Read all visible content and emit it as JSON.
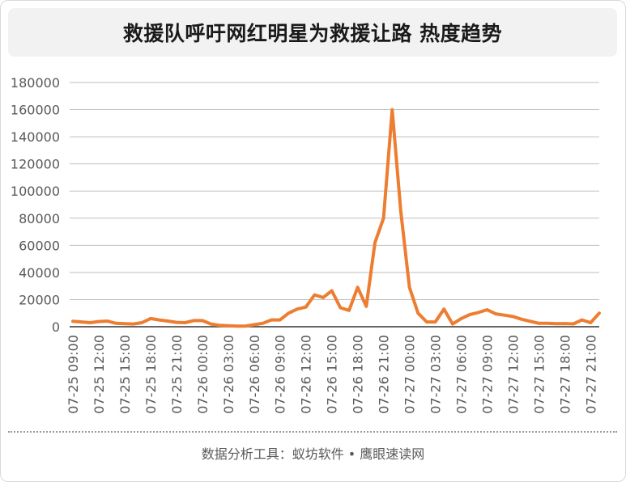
{
  "header": {
    "title": "救援队呼吁网红明星为救援让路 热度趋势"
  },
  "footer": {
    "text": "数据分析工具：蚁坊软件 • 鹰眼速读网"
  },
  "colors": {
    "line": "#ED7D31",
    "grid": "#bfbfbf",
    "axis": "#333333",
    "text": "#595959"
  },
  "chart_data": {
    "type": "line",
    "title": "救援队呼吁网红明星为救援让路 热度趋势",
    "xlabel": "",
    "ylabel": "",
    "ylim": [
      0,
      180000
    ],
    "yticks": [
      0,
      20000,
      40000,
      60000,
      80000,
      100000,
      120000,
      140000,
      160000,
      180000
    ],
    "grid": true,
    "legend": "none",
    "x_tick_labels": [
      "07-25 09:00",
      "07-25 12:00",
      "07-25 15:00",
      "07-25 18:00",
      "07-25 21:00",
      "07-26 00:00",
      "07-26 03:00",
      "07-26 06:00",
      "07-26 09:00",
      "07-26 12:00",
      "07-26 15:00",
      "07-26 18:00",
      "07-26 21:00",
      "07-27 00:00",
      "07-27 03:00",
      "07-27 06:00",
      "07-27 09:00",
      "07-27 12:00",
      "07-27 15:00",
      "07-27 18:00",
      "07-27 21:00"
    ],
    "tick_every": 3,
    "series": [
      {
        "name": "",
        "values": [
          4000,
          3500,
          3000,
          3800,
          4200,
          2500,
          2200,
          2000,
          3000,
          6000,
          5000,
          4200,
          3200,
          3000,
          4500,
          4500,
          2000,
          1000,
          800,
          500,
          500,
          1500,
          2500,
          5000,
          5000,
          10000,
          13000,
          14500,
          23500,
          21500,
          26500,
          14000,
          12000,
          29000,
          15000,
          62000,
          80000,
          160000,
          85000,
          29000,
          10000,
          3500,
          3500,
          13000,
          2000,
          6000,
          9000,
          10500,
          12500,
          9500,
          8500,
          7500,
          5500,
          4000,
          2500,
          2500,
          2200,
          2300,
          2100,
          5000,
          3000,
          10000
        ]
      }
    ]
  }
}
